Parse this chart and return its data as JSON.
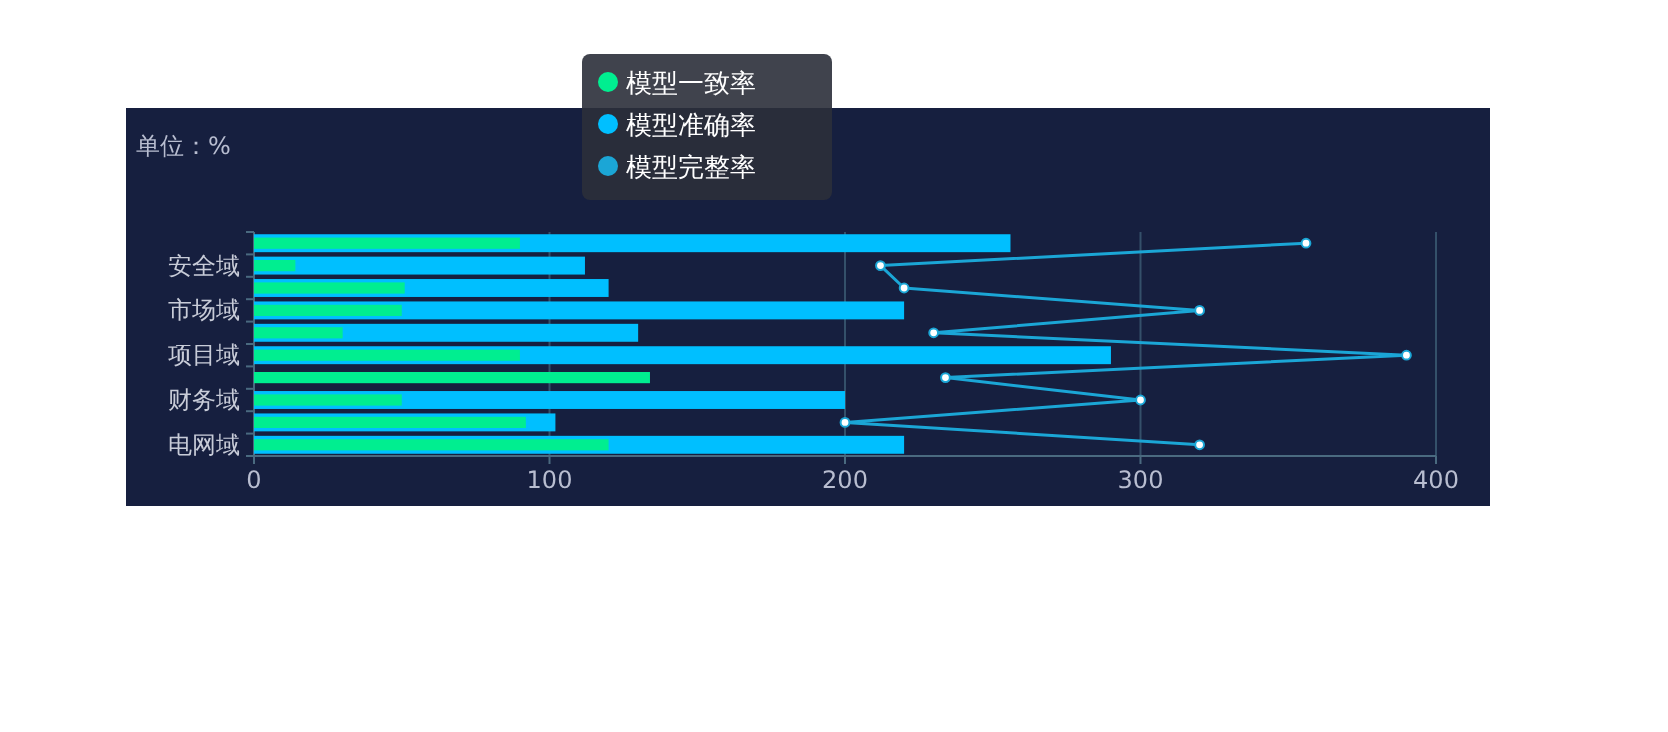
{
  "chart_data": {
    "type": "bar",
    "orientation": "horizontal",
    "ylabel": "单位：%",
    "categories": [
      null,
      "安全域",
      null,
      "市场域",
      null,
      "项目域",
      null,
      "财务域",
      null,
      "电网域"
    ],
    "series": [
      {
        "name": "模型一致率",
        "color": "#00ee90",
        "values": [
          90,
          14,
          51,
          50,
          30,
          90,
          134,
          50,
          92,
          120
        ]
      },
      {
        "name": "模型准确率",
        "color": "#00bfff",
        "values": [
          256,
          112,
          120,
          220,
          130,
          290,
          null,
          200,
          102,
          220
        ]
      },
      {
        "name": "模型完整率",
        "type": "line",
        "color": "#1ba6d6",
        "marker": "circle",
        "values": [
          356,
          212,
          220,
          320,
          230,
          390,
          234,
          300,
          200,
          320
        ]
      }
    ],
    "xlim": [
      0,
      400
    ],
    "xticks": [
      0,
      100,
      200,
      300,
      400
    ],
    "grid": "x",
    "legend": "top"
  }
}
